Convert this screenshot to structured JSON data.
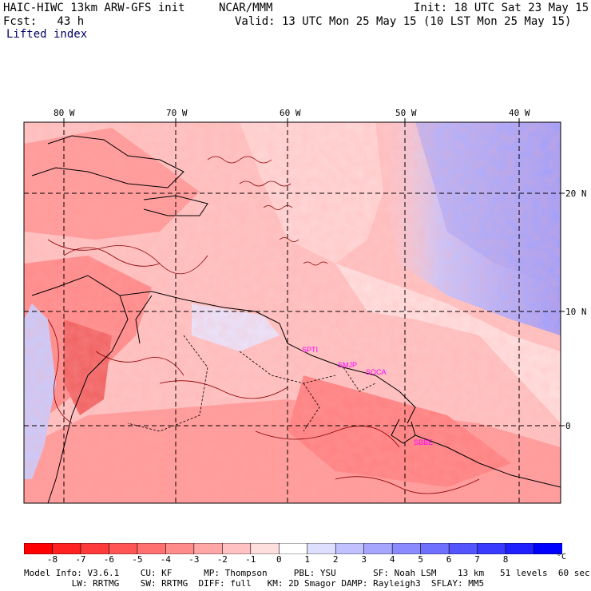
{
  "header": {
    "model": "HAIC-HIWC 13km ARW-GFS init",
    "org": "NCAR/MMM",
    "init": "Init: 18 UTC Sat 23 May 15",
    "fcst": "Fcst:   43 h",
    "valid": "Valid: 13 UTC Mon 25 May 15 (10 LST Mon 25 May 15)",
    "field": "Lifted index"
  },
  "map": {
    "lon_labels": [
      "80 W",
      "70 W",
      "60 W",
      "50 W",
      "40 W"
    ],
    "lat_labels": [
      "20 N",
      "10 N",
      "0"
    ],
    "station_labels": [
      "SPTI",
      "SMJP",
      "SOCA",
      "SBBE"
    ],
    "station_color": "#ff00ff",
    "grid_color": "#000000"
  },
  "colorbar": {
    "ticks": [
      "-8",
      "-7",
      "-6",
      "-5",
      "-4",
      "-3",
      "-2",
      "-1",
      "0",
      "1",
      "2",
      "3",
      "4",
      "5",
      "6",
      "7",
      "8"
    ],
    "unit": "°C",
    "colors": [
      "#ff0000",
      "#ff2020",
      "#ff3a3a",
      "#ff5555",
      "#ff7070",
      "#ff8b8b",
      "#ffa6a6",
      "#ffc1c1",
      "#ffdede",
      "#ffffff",
      "#dedeff",
      "#c1c1ff",
      "#a6a6ff",
      "#8b8bff",
      "#7070ff",
      "#5555ff",
      "#3a3aff",
      "#2020ff",
      "#0000ff"
    ]
  },
  "footer": {
    "line1": "Model Info: V3.6.1    CU: KF      MP: Thompson     PBL: YSU       SF: Noah LSM    13 km   51 levels  60 sec",
    "line2": "         LW: RRTMG    SW: RRTMG  DIFF: full   KM: 2D Smagor DAMP: Rayleigh3  SFLAY: MM5"
  }
}
